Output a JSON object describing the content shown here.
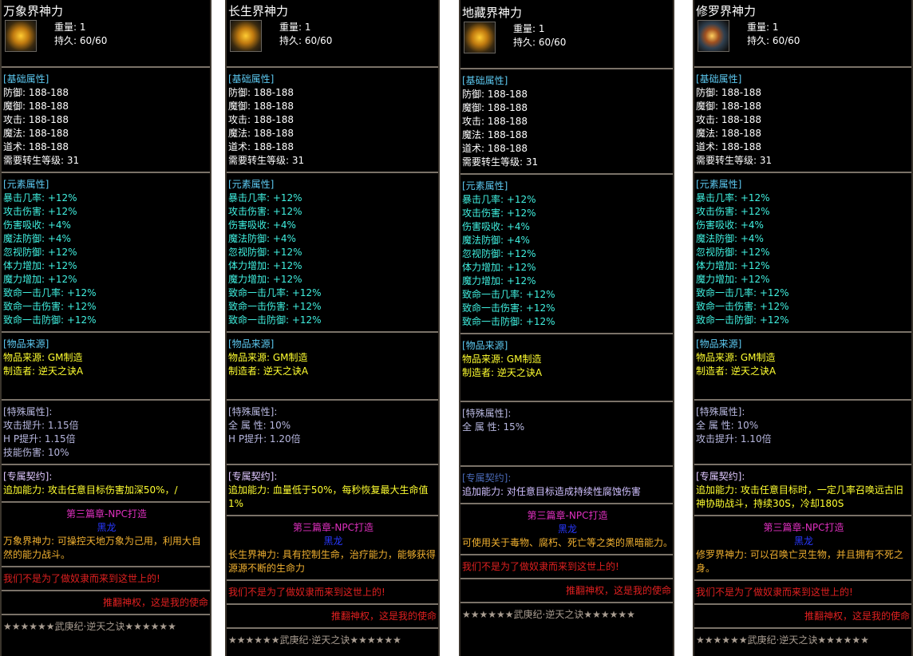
{
  "common": {
    "weight_label": "重量: ",
    "durability_label": "持久: ",
    "basic_header": "[基础属性]",
    "element_header": "[元素属性]",
    "source_header": "[物品来源]",
    "special_header": "[特殊属性]:",
    "contract_header": "[专属契约]:",
    "chapter": "第三篇章-NPC打造",
    "maker_tag": "黑龙",
    "motto1": "我们不是为了做奴隶而来到这世上的!",
    "motto2": "推翻神权，这是我的使命",
    "footer": "★★★★★★武庚纪·逆天之诀★★★★★★",
    "basic": [
      "防御: 188-188",
      "魔御: 188-188",
      "攻击: 188-188",
      "魔法: 188-188",
      "道术: 188-188",
      "需要转生等级: 31"
    ],
    "element": [
      "暴击几率: +12%",
      "攻击伤害: +12%",
      "伤害吸收: +4%",
      "魔法防御: +4%",
      "忽视防御: +12%",
      "体力增加: +12%",
      "魔力增加: +12%",
      "致命一击几率: +12%",
      "致命一击伤害: +12%",
      "致命一击防御: +12%"
    ],
    "source": [
      "物品来源: GM制造",
      "制造者: 逆天之诀A"
    ]
  },
  "colors": {
    "cyan": "#40f0e0",
    "yellow": "#ffff30",
    "magenta": "#e030c0",
    "blue": "#2838ff",
    "gold": "#f0b030",
    "red": "#e02020"
  },
  "panels": [
    {
      "title": "万象界神力",
      "icon": "golden-armor-icon",
      "weight": "1",
      "durability": "60/60",
      "special": [
        "攻击提升: 1.15倍",
        "H  P提升: 1.15倍",
        "技能伤害: 10%"
      ],
      "contract": "追加能力: 攻击任意目标伤害加深50%，/",
      "desc": "万象界神力: 可操控天地万象为己用，利用大自然的能力战斗。"
    },
    {
      "title": "长生界神力",
      "icon": "golden-warrior-icon",
      "weight": "1",
      "durability": "60/60",
      "special": [
        "全 属 性: 10%",
        "H  P提升: 1.20倍"
      ],
      "contract": "追加能力: 血量低于50%，每秒恢复最大生命值1%",
      "desc": "长生界神力: 具有控制生命，治疗能力，能够获得源源不断的生命力"
    },
    {
      "title": "地藏界神力",
      "icon": "golden-figure-icon",
      "weight": "1",
      "durability": "60/60",
      "special": [
        "全 属 性: 15%"
      ],
      "contract": "追加能力: 对任意目标造成持续性腐蚀伤害",
      "desc": "可使用关于毒物、腐朽、死亡等之类的黑暗能力。"
    },
    {
      "title": "修罗界神力",
      "icon": "asura-figure-icon",
      "weight": "1",
      "durability": "60/60",
      "special": [
        "全 属 性: 10%",
        "攻击提升: 1.10倍"
      ],
      "contract": "追加能力: 攻击任意目标时，一定几率召唤远古旧神协助战斗，持续30S，冷却180S",
      "desc": "修罗界神力: 可以召唤亡灵生物，并且拥有不死之身。"
    }
  ]
}
